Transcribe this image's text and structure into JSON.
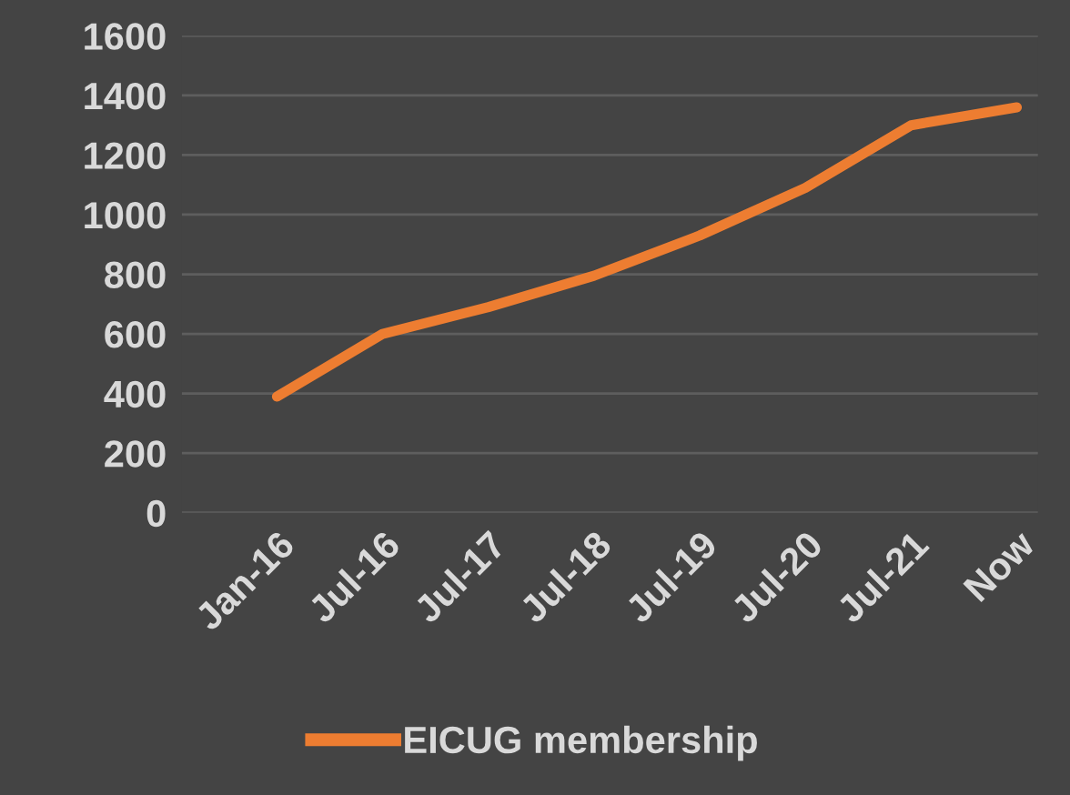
{
  "chart_data": {
    "type": "line",
    "categories": [
      "Jan-16",
      "Jul-16",
      "Jul-17",
      "Jul-18",
      "Jul-19",
      "Jul-20",
      "Jul-21",
      "Now"
    ],
    "series": [
      {
        "name": "EICUG membership",
        "color": "#ed7d31",
        "values": [
          390,
          600,
          690,
          795,
          930,
          1090,
          1300,
          1360
        ]
      }
    ],
    "ylim": [
      0,
      1600
    ],
    "yticks": [
      0,
      200,
      400,
      600,
      800,
      1000,
      1200,
      1400,
      1600
    ],
    "grid": "y",
    "legend": "bottom",
    "marker": "none",
    "line_style": "solid"
  }
}
